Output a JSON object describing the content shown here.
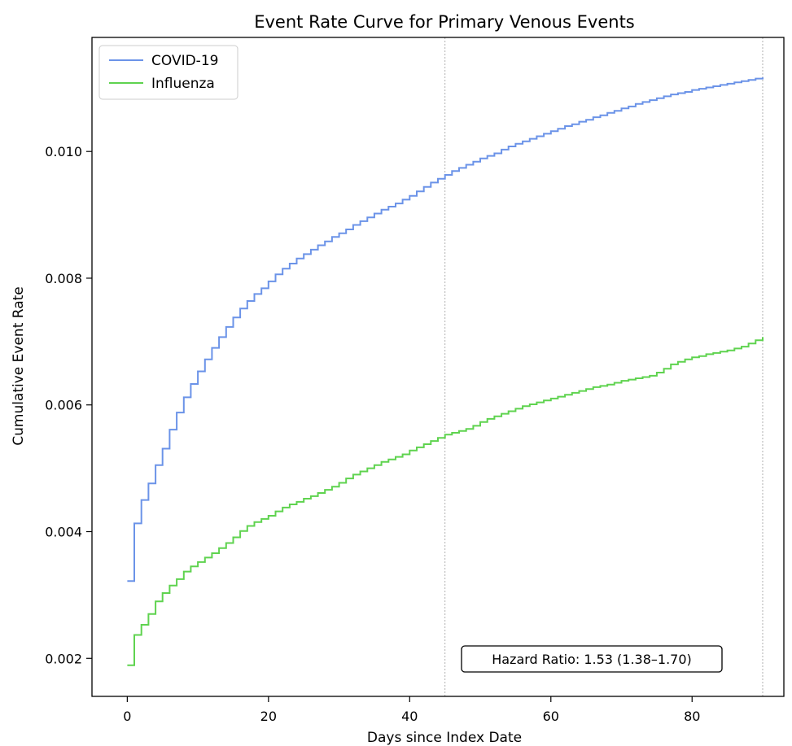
{
  "chart_data": {
    "type": "line",
    "step": true,
    "title": "Event Rate Curve for Primary Venous Events",
    "xlabel": "Days since Index Date",
    "ylabel": "Cumulative Event Rate",
    "xlim": [
      -5,
      93
    ],
    "ylim": [
      0.0014,
      0.0118
    ],
    "xticks": [
      0,
      20,
      40,
      60,
      80
    ],
    "xtick_labels": [
      "0",
      "20",
      "40",
      "60",
      "80"
    ],
    "yticks": [
      0.002,
      0.004,
      0.006,
      0.008,
      0.01
    ],
    "ytick_labels": [
      "0.002",
      "0.004",
      "0.006",
      "0.008",
      "0.010"
    ],
    "reference_lines_x": [
      45,
      90
    ],
    "legend_position": "upper-left",
    "annotation": "Hazard Ratio: 1.53 (1.38–1.70)",
    "series": [
      {
        "name": "COVID-19",
        "color": "#6b93e8",
        "x": [
          0,
          1,
          2,
          3,
          4,
          5,
          6,
          7,
          8,
          9,
          10,
          11,
          12,
          13,
          14,
          15,
          16,
          17,
          18,
          19,
          20,
          21,
          22,
          23,
          24,
          25,
          26,
          27,
          28,
          29,
          30,
          31,
          32,
          33,
          34,
          35,
          36,
          37,
          38,
          39,
          40,
          41,
          42,
          43,
          44,
          45,
          46,
          47,
          48,
          49,
          50,
          51,
          52,
          53,
          54,
          55,
          56,
          57,
          58,
          59,
          60,
          61,
          62,
          63,
          64,
          65,
          66,
          67,
          68,
          69,
          70,
          71,
          72,
          73,
          74,
          75,
          76,
          77,
          78,
          79,
          80,
          81,
          82,
          83,
          84,
          85,
          86,
          87,
          88,
          89,
          90
        ],
        "y": [
          0.00322,
          0.00413,
          0.0045,
          0.00476,
          0.00505,
          0.00531,
          0.00561,
          0.00588,
          0.00612,
          0.00633,
          0.00653,
          0.00672,
          0.0069,
          0.00707,
          0.00723,
          0.00738,
          0.00752,
          0.00764,
          0.00775,
          0.00784,
          0.00795,
          0.00806,
          0.00815,
          0.00823,
          0.00831,
          0.00838,
          0.00845,
          0.00852,
          0.00858,
          0.00865,
          0.00871,
          0.00877,
          0.00884,
          0.0089,
          0.00896,
          0.00902,
          0.00908,
          0.00913,
          0.00918,
          0.00924,
          0.0093,
          0.00937,
          0.00944,
          0.00951,
          0.00957,
          0.00963,
          0.00969,
          0.00974,
          0.00979,
          0.00984,
          0.00989,
          0.00993,
          0.00997,
          0.01003,
          0.01008,
          0.01012,
          0.01016,
          0.0102,
          0.01024,
          0.01028,
          0.01032,
          0.01036,
          0.0104,
          0.01043,
          0.01047,
          0.0105,
          0.01054,
          0.01057,
          0.01061,
          0.01064,
          0.01068,
          0.01071,
          0.01075,
          0.01078,
          0.01081,
          0.01084,
          0.01087,
          0.0109,
          0.01092,
          0.01094,
          0.01097,
          0.01099,
          0.01101,
          0.01103,
          0.01105,
          0.01107,
          0.01109,
          0.01111,
          0.01113,
          0.01115,
          0.01117
        ]
      },
      {
        "name": "Influenza",
        "color": "#5fd34f",
        "x": [
          0,
          1,
          2,
          3,
          4,
          5,
          6,
          7,
          8,
          9,
          10,
          11,
          12,
          13,
          14,
          15,
          16,
          17,
          18,
          19,
          20,
          21,
          22,
          23,
          24,
          25,
          26,
          27,
          28,
          29,
          30,
          31,
          32,
          33,
          34,
          35,
          36,
          37,
          38,
          39,
          40,
          41,
          42,
          43,
          44,
          45,
          46,
          47,
          48,
          49,
          50,
          51,
          52,
          53,
          54,
          55,
          56,
          57,
          58,
          59,
          60,
          61,
          62,
          63,
          64,
          65,
          66,
          67,
          68,
          69,
          70,
          71,
          72,
          73,
          74,
          75,
          76,
          77,
          78,
          79,
          80,
          81,
          82,
          83,
          84,
          85,
          86,
          87,
          88,
          89,
          90
        ],
        "y": [
          0.00189,
          0.00237,
          0.00253,
          0.0027,
          0.0029,
          0.00303,
          0.00315,
          0.00325,
          0.00337,
          0.00345,
          0.00352,
          0.00359,
          0.00366,
          0.00374,
          0.00382,
          0.00391,
          0.00401,
          0.00409,
          0.00415,
          0.0042,
          0.00425,
          0.00432,
          0.00438,
          0.00443,
          0.00447,
          0.00452,
          0.00456,
          0.00461,
          0.00466,
          0.00471,
          0.00477,
          0.00484,
          0.0049,
          0.00495,
          0.005,
          0.00505,
          0.0051,
          0.00514,
          0.00518,
          0.00522,
          0.00528,
          0.00533,
          0.00538,
          0.00543,
          0.00548,
          0.00553,
          0.00556,
          0.00559,
          0.00562,
          0.00567,
          0.00573,
          0.00578,
          0.00582,
          0.00586,
          0.0059,
          0.00594,
          0.00598,
          0.00601,
          0.00604,
          0.00607,
          0.0061,
          0.00613,
          0.00616,
          0.00619,
          0.00622,
          0.00625,
          0.00628,
          0.0063,
          0.00632,
          0.00635,
          0.00638,
          0.0064,
          0.00642,
          0.00644,
          0.00646,
          0.00651,
          0.00657,
          0.00664,
          0.00668,
          0.00672,
          0.00675,
          0.00677,
          0.0068,
          0.00682,
          0.00684,
          0.00686,
          0.00689,
          0.00692,
          0.00697,
          0.00702,
          0.00707
        ]
      }
    ]
  }
}
